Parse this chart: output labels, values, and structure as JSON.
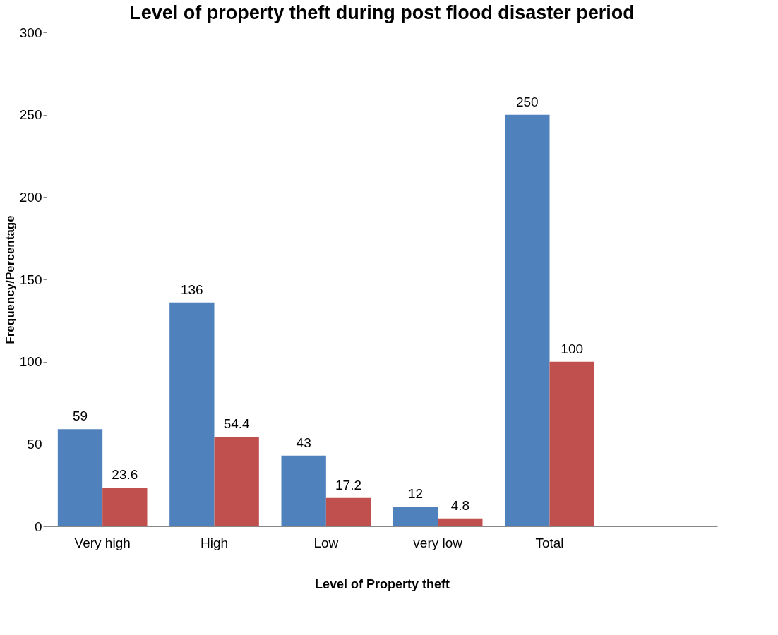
{
  "chart_data": {
    "type": "bar",
    "title": "Level of property theft during post flood disaster period",
    "xlabel": "Level of Property theft",
    "ylabel": "Frequency/Percentage",
    "categories": [
      "Very high",
      "High",
      "Low",
      "very low",
      "Total",
      null
    ],
    "series": [
      {
        "color": "#4f81bd",
        "values": [
          59,
          136,
          43,
          12,
          250,
          null
        ]
      },
      {
        "color": "#c0504d",
        "values": [
          23.6,
          54.4,
          17.2,
          4.8,
          100,
          null
        ]
      }
    ],
    "ylim": [
      0,
      300
    ],
    "yticks": [
      0,
      50,
      100,
      150,
      200,
      250,
      300
    ],
    "grid": false,
    "legend": false,
    "data_labels": true
  }
}
